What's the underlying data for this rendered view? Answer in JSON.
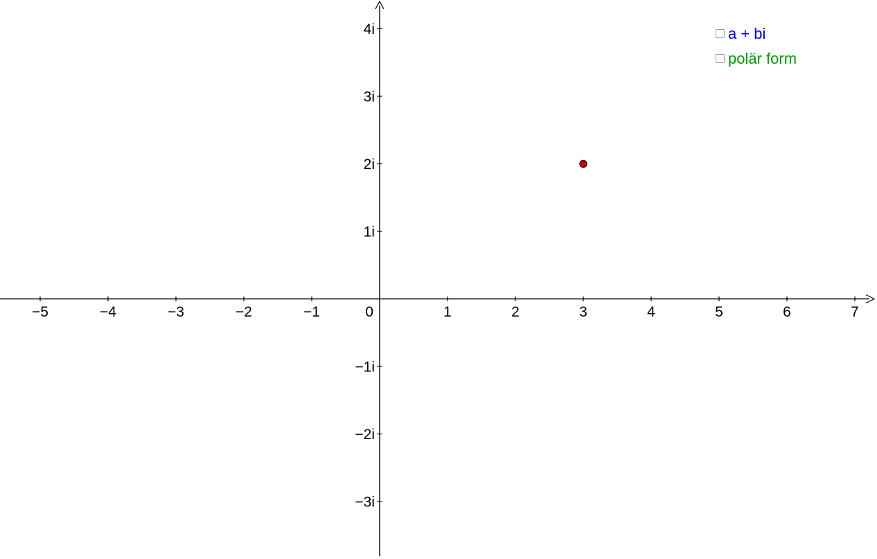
{
  "app": {
    "background_color": "#FFFFFF",
    "axis_color": "#000000"
  },
  "controls": {
    "checkboxes": [
      {
        "label": "a + bi",
        "color": "#0000CC",
        "checked": false
      },
      {
        "label": "polär form",
        "color": "#009900",
        "checked": false
      }
    ]
  },
  "chart_data": {
    "type": "scatter",
    "title": "",
    "xlabel": "",
    "ylabel": "",
    "grid": false,
    "legend_position": "none",
    "x_axis": {
      "min": -5.6,
      "max": 7.3,
      "tick_step": 1,
      "tick_values": [
        -5,
        -4,
        -3,
        -2,
        -1,
        0,
        1,
        2,
        3,
        4,
        5,
        6,
        7
      ],
      "tick_labels": [
        "−5",
        "−4",
        "−3",
        "−2",
        "−1",
        "0",
        "1",
        "2",
        "3",
        "4",
        "5",
        "6",
        "7"
      ]
    },
    "y_axis": {
      "min": -3.85,
      "max": 4.4,
      "tick_step": 1,
      "tick_values": [
        -3,
        -2,
        -1,
        1,
        2,
        3,
        4
      ],
      "tick_labels": [
        "−3i",
        "−2i",
        "−1i",
        "1i",
        "2i",
        "3i",
        "4i"
      ]
    },
    "points": [
      {
        "x": 3,
        "y": 2,
        "fill_color": "#D40000",
        "stroke_color": "#330000"
      }
    ]
  }
}
